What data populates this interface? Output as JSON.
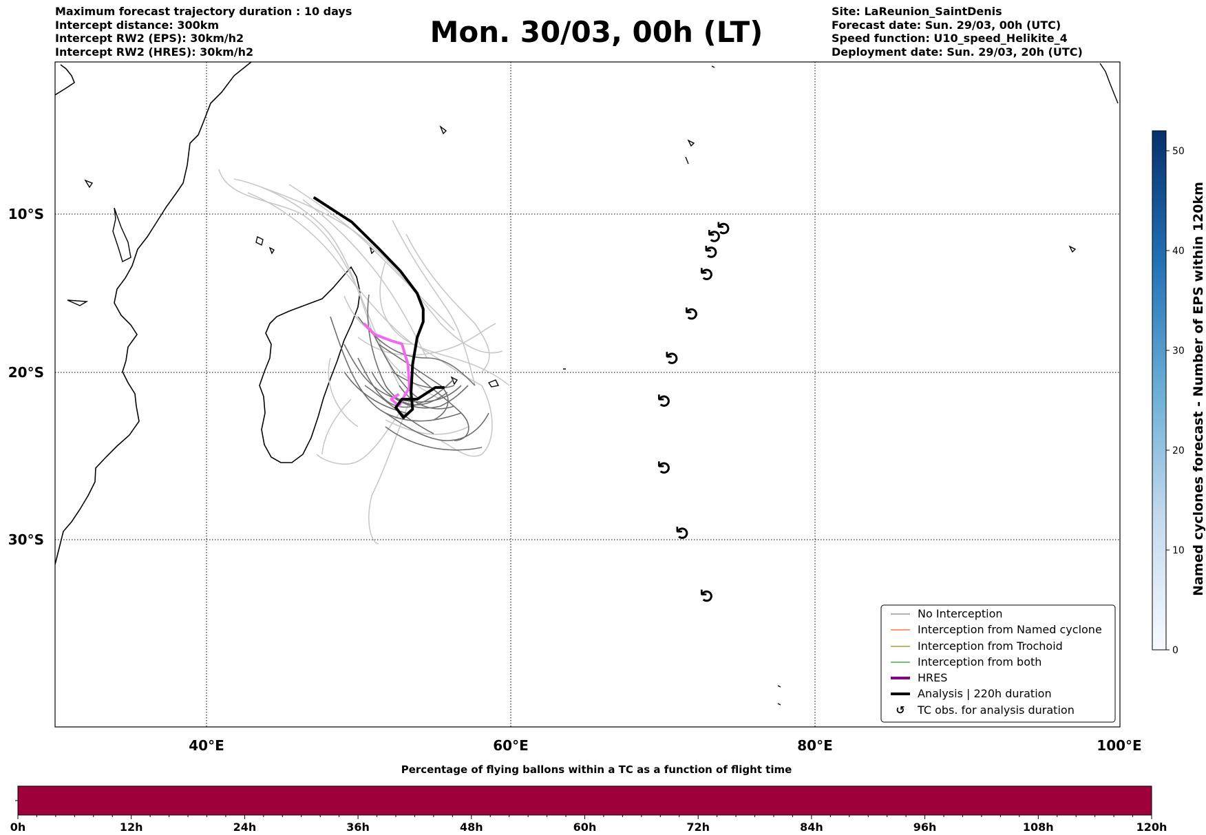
{
  "header": {
    "left_lines": [
      "Maximum forecast trajectory duration : 10 days",
      "Intercept distance: 300km",
      "Intercept RW2 (EPS):  30km/h2",
      "Intercept RW2 (HRES): 30km/h2"
    ],
    "title": "Mon. 30/03, 00h (LT)",
    "right_lines": [
      "Site: LaReunion_SaintDenis",
      "Forecast date: Sun. 29/03, 00h (UTC)",
      "Speed function: U10_speed_Helikite_4",
      "Deployment date: Sun. 29/03, 20h (UTC)"
    ]
  },
  "map": {
    "lon_range": [
      30,
      100
    ],
    "lat_range": [
      -42,
      0
    ],
    "lon_ticks": [
      {
        "value": 40,
        "label": "40°E"
      },
      {
        "value": 60,
        "label": "60°E"
      },
      {
        "value": 80,
        "label": "80°E"
      },
      {
        "value": 100,
        "label": "100°E"
      }
    ],
    "lat_ticks": [
      {
        "value": -10,
        "label": "10°S"
      },
      {
        "value": -20,
        "label": "20°S"
      },
      {
        "value": -30,
        "label": "30°S"
      }
    ],
    "tc_obs_positions": [
      [
        74.0,
        -10.9
      ],
      [
        73.4,
        -11.4
      ],
      [
        73.2,
        -12.4
      ],
      [
        72.9,
        -13.8
      ],
      [
        71.9,
        -16.3
      ],
      [
        70.6,
        -19.1
      ],
      [
        70.1,
        -21.7
      ],
      [
        70.1,
        -25.7
      ],
      [
        71.3,
        -29.6
      ],
      [
        72.9,
        -33.6
      ]
    ],
    "analysis_track": [
      [
        47.0,
        -8.9
      ],
      [
        49.5,
        -10.5
      ],
      [
        51.3,
        -12.2
      ],
      [
        52.7,
        -13.6
      ],
      [
        53.8,
        -15.0
      ],
      [
        54.2,
        -16.0
      ],
      [
        54.2,
        -16.8
      ],
      [
        53.8,
        -17.8
      ],
      [
        53.5,
        -19.5
      ],
      [
        53.4,
        -21.2
      ],
      [
        53.5,
        -22.2
      ],
      [
        52.9,
        -22.7
      ],
      [
        52.4,
        -22.1
      ],
      [
        52.8,
        -21.6
      ],
      [
        53.8,
        -21.6
      ],
      [
        55.0,
        -20.9
      ],
      [
        55.6,
        -20.9
      ]
    ],
    "hres_track": [
      [
        50.3,
        -16.9
      ],
      [
        51.0,
        -17.6
      ],
      [
        52.1,
        -18.0
      ],
      [
        52.8,
        -18.2
      ],
      [
        53.2,
        -19.5
      ],
      [
        53.3,
        -20.9
      ],
      [
        52.9,
        -21.5
      ],
      [
        52.6,
        -22.0
      ],
      [
        52.1,
        -21.6
      ],
      [
        52.6,
        -21.3
      ]
    ],
    "colors": {
      "no_interception": "#808080",
      "named_cyclone": "#ff5a1e",
      "trochoid": "#8c8c14",
      "both": "#1e9e1e",
      "hres": "#8b008b",
      "hres_track_drawn": "#f06af0",
      "analysis": "#000000"
    }
  },
  "legend": {
    "items": [
      {
        "label": "No Interception",
        "style": "thin",
        "color": "#808080"
      },
      {
        "label": "Interception from Named cyclone",
        "style": "thin",
        "color": "#ff5a1e"
      },
      {
        "label": "Interception from Trochoid",
        "style": "thin",
        "color": "#8c8c14"
      },
      {
        "label": "Interception from both",
        "style": "thin",
        "color": "#1e9e1e"
      },
      {
        "label": "HRES",
        "style": "thick",
        "color": "#8b008b"
      },
      {
        "label": "Analysis | 220h duration",
        "style": "thick",
        "color": "#000000"
      },
      {
        "label": "TC obs. for analysis duration",
        "style": "symbol",
        "color": "#000000"
      }
    ]
  },
  "colorbar": {
    "label": "Named cyclones forecast - Number of EPS within 120km",
    "ticks": [
      0,
      10,
      20,
      30,
      40,
      50
    ],
    "range": [
      0,
      52
    ],
    "color_low": "#f7fbff",
    "color_high": "#08306b"
  },
  "percentage_bar": {
    "title": "Percentage of flying ballons within a TC as a function of flight time",
    "ticks": [
      "0h",
      "12h",
      "24h",
      "36h",
      "48h",
      "60h",
      "72h",
      "84h",
      "96h",
      "108h",
      "120h"
    ],
    "fill_color": "#9e003a"
  }
}
